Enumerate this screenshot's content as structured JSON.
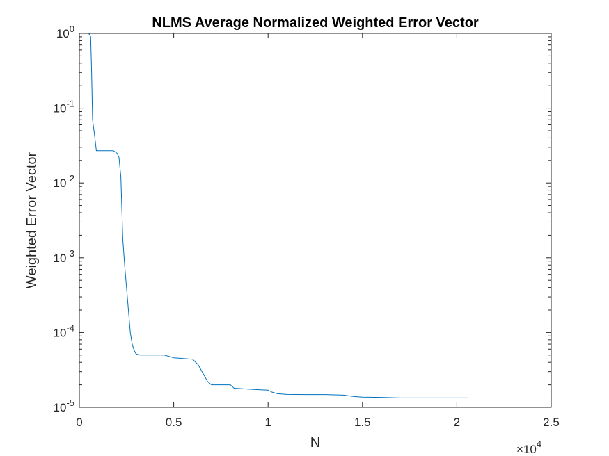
{
  "chart_data": {
    "type": "line",
    "title": "NLMS Average Normalized Weighted Error Vector",
    "xlabel": "N",
    "ylabel": "Weighted Error Vector",
    "x_exponent_label": "×10",
    "x_exponent_power": "4",
    "x_scale_factor": 10000,
    "xlim": [
      0,
      25000
    ],
    "ylim": [
      1e-05,
      1
    ],
    "yscale": "log",
    "grid": false,
    "x_ticks": [
      {
        "value": 0,
        "label": "0"
      },
      {
        "value": 5000,
        "label": "0.5"
      },
      {
        "value": 10000,
        "label": "1"
      },
      {
        "value": 15000,
        "label": "1.5"
      },
      {
        "value": 20000,
        "label": "2"
      },
      {
        "value": 25000,
        "label": "2.5"
      }
    ],
    "y_ticks": [
      {
        "value": 1,
        "base": "10",
        "exp": "0"
      },
      {
        "value": 0.1,
        "base": "10",
        "exp": "-1"
      },
      {
        "value": 0.01,
        "base": "10",
        "exp": "-2"
      },
      {
        "value": 0.001,
        "base": "10",
        "exp": "-3"
      },
      {
        "value": 0.0001,
        "base": "10",
        "exp": "-4"
      },
      {
        "value": 1e-05,
        "base": "10",
        "exp": "-5"
      }
    ],
    "series": [
      {
        "color": "#0072BD",
        "x": [
          0,
          400,
          500,
          600,
          650,
          700,
          800,
          900,
          1000,
          1500,
          1800,
          2000,
          2100,
          2200,
          2300,
          2400,
          2500,
          2700,
          2800,
          2900,
          3000,
          3200,
          3500,
          4000,
          4500,
          5000,
          5500,
          6000,
          6300,
          6500,
          6800,
          7000,
          7200,
          7500,
          8000,
          8200,
          8500,
          9000,
          9500,
          10000,
          10200,
          10500,
          11000,
          12000,
          13000,
          14000,
          14500,
          15000,
          16000,
          17000,
          18000,
          19000,
          20000,
          20600
        ],
        "y": [
          1,
          1,
          1,
          0.9,
          0.3,
          0.07,
          0.045,
          0.027,
          0.027,
          0.027,
          0.027,
          0.025,
          0.022,
          0.012,
          0.0018,
          0.0008,
          0.0004,
          0.0001,
          7e-05,
          5.8e-05,
          5.2e-05,
          5e-05,
          5e-05,
          5e-05,
          5e-05,
          4.6e-05,
          4.5e-05,
          4.4e-05,
          3.7e-05,
          3e-05,
          2.2e-05,
          2e-05,
          2e-05,
          2e-05,
          2e-05,
          1.8e-05,
          1.78e-05,
          1.75e-05,
          1.72e-05,
          1.7e-05,
          1.6e-05,
          1.52e-05,
          1.49e-05,
          1.48e-05,
          1.48e-05,
          1.46e-05,
          1.4e-05,
          1.37e-05,
          1.36e-05,
          1.34e-05,
          1.34e-05,
          1.34e-05,
          1.34e-05,
          1.34e-05
        ]
      }
    ]
  }
}
